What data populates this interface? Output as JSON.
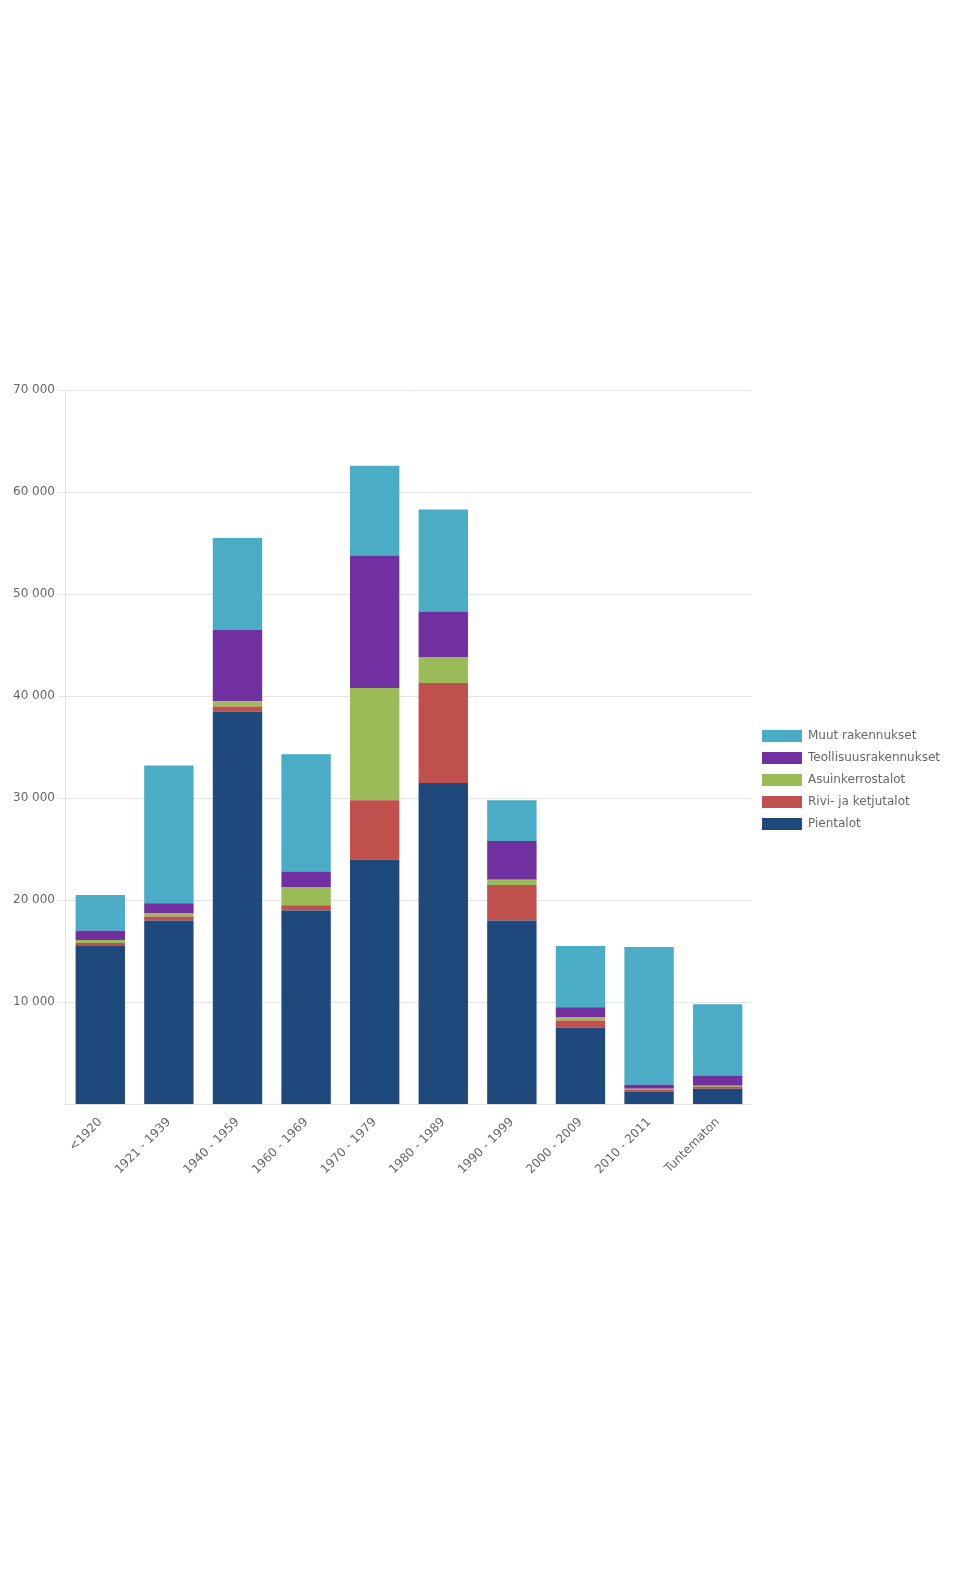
{
  "chart_data": {
    "type": "bar",
    "stacked": true,
    "categories": [
      "<1920",
      "1921 - 1939",
      "1940 - 1959",
      "1960 - 1969",
      "1970 - 1979",
      "1980 - 1989",
      "1990 - 1999",
      "2000 - 2009",
      "2010 - 2011",
      "Tuntematon"
    ],
    "series": [
      {
        "name": "Pientalot",
        "color": "#1F497D",
        "values": [
          15500,
          18000,
          38500,
          19000,
          24000,
          31500,
          18000,
          7500,
          1200,
          1500
        ]
      },
      {
        "name": "Rivi- ja ketjutalot",
        "color": "#C0504D",
        "values": [
          300,
          400,
          500,
          500,
          5800,
          9800,
          3500,
          700,
          200,
          200
        ]
      },
      {
        "name": "Asuinkerrostalot",
        "color": "#9BBB59",
        "values": [
          300,
          300,
          500,
          1800,
          11000,
          2500,
          500,
          300,
          100,
          100
        ]
      },
      {
        "name": "Teollisuusrakennukset",
        "color": "#7030A0",
        "values": [
          900,
          1000,
          7000,
          1500,
          13000,
          4500,
          3800,
          1000,
          400,
          1000
        ]
      },
      {
        "name": "Muut rakennukset",
        "color": "#4BACC6",
        "values": [
          3500,
          13500,
          9000,
          11500,
          8800,
          10000,
          4000,
          6000,
          13500,
          7000
        ]
      }
    ],
    "ylim": [
      0,
      70000
    ],
    "yticks": [
      {
        "value": 10000,
        "label": "10 000"
      },
      {
        "value": 20000,
        "label": "20 000"
      },
      {
        "value": 30000,
        "label": "30 000"
      },
      {
        "value": 40000,
        "label": "40 000"
      },
      {
        "value": 50000,
        "label": "50 000"
      },
      {
        "value": 60000,
        "label": "60 000"
      },
      {
        "value": 70000,
        "label": "70 000"
      }
    ],
    "grid": true,
    "legend": "right"
  }
}
